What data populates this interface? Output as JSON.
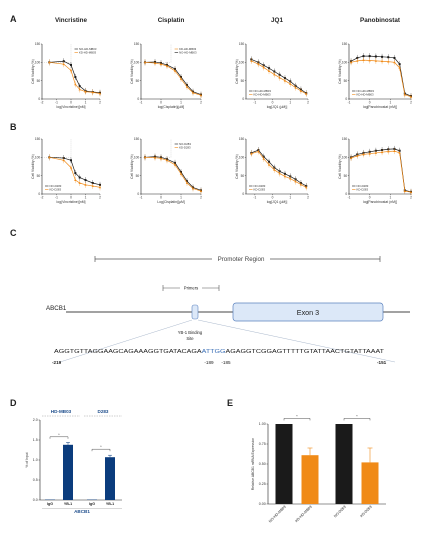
{
  "colors": {
    "black": "#1a1a1a",
    "orange": "#f08a17",
    "navy": "#0b3c7d",
    "grid_dashed": "#9e9e9e",
    "highlight_blue": "#3b6fb6",
    "exon_fill": "#dce8f8",
    "exon_stroke": "#5b82bf"
  },
  "panel_letters": {
    "A": "A",
    "B": "B",
    "C": "C",
    "D": "D",
    "E": "E"
  },
  "chart_data": [
    {
      "id": "A1",
      "panel": "A",
      "type": "line",
      "title": "Vincristine",
      "xlabel": "log(Vincristine)[nM]",
      "ylabel": "Cell Viability (%)",
      "xlim": [
        -2,
        2
      ],
      "ylim": [
        0,
        150
      ],
      "xticks": [
        "-2",
        "-1",
        "0",
        "1",
        "2"
      ],
      "yticks": [
        "0",
        "50",
        "100",
        "150"
      ],
      "legend": [
        "NO-HD-MB03",
        "KD-HD-MB03"
      ],
      "legend_position": "top-right",
      "ref_box": true,
      "series": [
        {
          "name": "NO-HD-MB03",
          "color": "black",
          "x": [
            -1.5,
            -0.5,
            0,
            0.3,
            0.6,
            1,
            1.5,
            2
          ],
          "y": [
            100,
            103,
            93,
            60,
            35,
            22,
            19,
            17
          ]
        },
        {
          "name": "KD-HD-MB03",
          "color": "orange",
          "x": [
            -1.5,
            -0.5,
            0,
            0.3,
            0.6,
            1,
            1.5,
            2
          ],
          "y": [
            100,
            95,
            78,
            40,
            26,
            20,
            18,
            15
          ]
        }
      ]
    },
    {
      "id": "A2",
      "panel": "A",
      "type": "line",
      "title": "Cisplatin",
      "xlabel": "log(Cisplatin)[µM]",
      "ylabel": "Cell Viability (%)",
      "xlim": [
        -1,
        2
      ],
      "ylim": [
        0,
        150
      ],
      "xticks": [
        "-1",
        "0",
        "1",
        "2"
      ],
      "yticks": [
        "0",
        "50",
        "100",
        "150"
      ],
      "legend": [
        "KD-HD-MB03",
        "NO-HD-MB03"
      ],
      "legend_position": "top-right",
      "ref_box": true,
      "series": [
        {
          "name": "NO-HD-MB03",
          "color": "black",
          "x": [
            -0.8,
            -0.3,
            0,
            0.3,
            0.7,
            1.0,
            1.3,
            1.6,
            2
          ],
          "y": [
            100,
            101,
            98,
            93,
            82,
            60,
            38,
            20,
            12
          ]
        },
        {
          "name": "KD-HD-MB03",
          "color": "orange",
          "x": [
            -0.8,
            -0.3,
            0,
            0.3,
            0.7,
            1.0,
            1.3,
            1.6,
            2
          ],
          "y": [
            100,
            98,
            95,
            90,
            77,
            55,
            33,
            17,
            10
          ]
        }
      ]
    },
    {
      "id": "A3",
      "panel": "A",
      "type": "line",
      "title": "JQ1",
      "xlabel": "log[JQ1 (µM)]",
      "ylabel": "Cell Viability (%)",
      "xlim": [
        -1.5,
        2
      ],
      "ylim": [
        0,
        150
      ],
      "xticks": [
        "-1",
        "0",
        "1",
        "2"
      ],
      "yticks": [
        "0",
        "50",
        "100",
        "150"
      ],
      "legend": [
        "NO-HD-MB03",
        "KD-HD-MB03"
      ],
      "legend_position": "bottom-left",
      "ref_box": false,
      "series": [
        {
          "name": "NO-HD-MB03",
          "color": "black",
          "x": [
            -1.2,
            -0.8,
            -0.5,
            -0.2,
            0.1,
            0.4,
            0.7,
            1.0,
            1.3,
            1.6,
            1.9
          ],
          "y": [
            108,
            100,
            92,
            84,
            75,
            66,
            57,
            48,
            36,
            26,
            16
          ]
        },
        {
          "name": "KD-HD-MB03",
          "color": "orange",
          "x": [
            -1.2,
            -0.8,
            -0.5,
            -0.2,
            0.1,
            0.4,
            0.7,
            1.0,
            1.3,
            1.6,
            1.9
          ],
          "y": [
            104,
            95,
            86,
            76,
            67,
            58,
            50,
            41,
            31,
            22,
            14
          ]
        }
      ]
    },
    {
      "id": "A4",
      "panel": "A",
      "type": "line",
      "title": "Panobinostat",
      "xlabel": "log[Panobinostat (nM)]",
      "ylabel": "Cell Viability (%)",
      "xlim": [
        -1,
        2
      ],
      "ylim": [
        0,
        150
      ],
      "xticks": [
        "-1",
        "0",
        "1",
        "2"
      ],
      "yticks": [
        "0",
        "50",
        "100",
        "150"
      ],
      "legend": [
        "NO-HD-MB03",
        "KD-HD-MB03"
      ],
      "legend_position": "bottom-left",
      "ref_box": false,
      "series": [
        {
          "name": "NO-HD-MB03",
          "color": "black",
          "x": [
            -0.9,
            -0.6,
            -0.3,
            0,
            0.3,
            0.6,
            0.9,
            1.2,
            1.45,
            1.7,
            2
          ],
          "y": [
            103,
            112,
            117,
            117,
            116,
            115,
            114,
            112,
            95,
            15,
            8
          ]
        },
        {
          "name": "KD-HD-MB03",
          "color": "orange",
          "x": [
            -0.9,
            -0.6,
            -0.3,
            0,
            0.3,
            0.6,
            0.9,
            1.2,
            1.45,
            1.7,
            2
          ],
          "y": [
            100,
            104,
            106,
            105,
            104,
            103,
            102,
            100,
            85,
            12,
            6
          ]
        }
      ]
    },
    {
      "id": "B1",
      "panel": "B",
      "type": "line",
      "title": "",
      "xlabel": "log(Vincristine)[nM]",
      "ylabel": "Cell Viability (%)",
      "xlim": [
        -2,
        2
      ],
      "ylim": [
        0,
        150
      ],
      "xticks": [
        "-2",
        "-1",
        "0",
        "1",
        "2"
      ],
      "yticks": [
        "0",
        "50",
        "100",
        "150"
      ],
      "legend": [
        "NO-D283",
        "KD-D283"
      ],
      "legend_position": "bottom-left",
      "ref_box": true,
      "series": [
        {
          "name": "NO-D283",
          "color": "black",
          "x": [
            -1.5,
            -0.5,
            0,
            0.3,
            0.6,
            1,
            1.5,
            2
          ],
          "y": [
            100,
            98,
            92,
            57,
            45,
            38,
            30,
            25
          ]
        },
        {
          "name": "KD-D283",
          "color": "orange",
          "x": [
            -1.5,
            -0.5,
            0,
            0.3,
            0.6,
            1,
            1.5,
            2
          ],
          "y": [
            100,
            92,
            72,
            38,
            30,
            25,
            22,
            18
          ]
        }
      ]
    },
    {
      "id": "B2",
      "panel": "B",
      "type": "line",
      "title": "",
      "xlabel": "Log(Cisplatin)[µM]",
      "ylabel": "Cell Viability (%)",
      "xlim": [
        -1,
        2
      ],
      "ylim": [
        0,
        150
      ],
      "xticks": [
        "-1",
        "0",
        "1",
        "2"
      ],
      "yticks": [
        "0",
        "50",
        "100",
        "150"
      ],
      "legend": [
        "NO-D283",
        "KD-D283"
      ],
      "legend_position": "top-right",
      "ref_box": true,
      "series": [
        {
          "name": "NO-D283",
          "color": "black",
          "x": [
            -0.8,
            -0.3,
            0,
            0.3,
            0.7,
            1.0,
            1.3,
            1.6,
            2
          ],
          "y": [
            100,
            102,
            100,
            95,
            85,
            60,
            35,
            18,
            10
          ]
        },
        {
          "name": "KD-D283",
          "color": "orange",
          "x": [
            -0.8,
            -0.3,
            0,
            0.3,
            0.7,
            1.0,
            1.3,
            1.6,
            2
          ],
          "y": [
            100,
            99,
            97,
            92,
            80,
            55,
            30,
            15,
            8
          ]
        }
      ]
    },
    {
      "id": "B3",
      "panel": "B",
      "type": "line",
      "title": "",
      "xlabel": "log[JQ1 (µM)]",
      "ylabel": "Cell Viability (%)",
      "xlim": [
        -1.5,
        2
      ],
      "ylim": [
        0,
        150
      ],
      "xticks": [
        "-1",
        "0",
        "1",
        "2"
      ],
      "yticks": [
        "0",
        "50",
        "100",
        "150"
      ],
      "legend": [
        "NO-D283",
        "KD-D283"
      ],
      "legend_position": "bottom-left",
      "ref_box": false,
      "series": [
        {
          "name": "NO-D283",
          "color": "black",
          "x": [
            -1.2,
            -0.8,
            -0.5,
            -0.2,
            0.1,
            0.4,
            0.7,
            1.0,
            1.3,
            1.6,
            1.9
          ],
          "y": [
            112,
            120,
            102,
            88,
            72,
            62,
            55,
            48,
            40,
            30,
            22
          ]
        },
        {
          "name": "KD-D283",
          "color": "orange",
          "x": [
            -1.2,
            -0.8,
            -0.5,
            -0.2,
            0.1,
            0.4,
            0.7,
            1.0,
            1.3,
            1.6,
            1.9
          ],
          "y": [
            110,
            116,
            96,
            80,
            66,
            56,
            48,
            42,
            34,
            26,
            18
          ]
        }
      ]
    },
    {
      "id": "B4",
      "panel": "B",
      "type": "line",
      "title": "",
      "xlabel": "log[Panobinostat (nM)]",
      "ylabel": "Cell Viability (%)",
      "xlim": [
        -1,
        2
      ],
      "ylim": [
        0,
        150
      ],
      "xticks": [
        "-1",
        "0",
        "1",
        "2"
      ],
      "yticks": [
        "0",
        "50",
        "100",
        "150"
      ],
      "legend": [
        "NO-D283",
        "KD-D283"
      ],
      "legend_position": "bottom-left",
      "ref_box": false,
      "series": [
        {
          "name": "NO-D283",
          "color": "black",
          "x": [
            -0.9,
            -0.6,
            -0.3,
            0,
            0.3,
            0.6,
            0.9,
            1.2,
            1.45,
            1.7,
            2
          ],
          "y": [
            100,
            108,
            112,
            115,
            118,
            120,
            122,
            123,
            118,
            10,
            6
          ]
        },
        {
          "name": "KD-D283",
          "color": "orange",
          "x": [
            -0.9,
            -0.6,
            -0.3,
            0,
            0.3,
            0.6,
            0.9,
            1.2,
            1.45,
            1.7,
            2
          ],
          "y": [
            98,
            104,
            108,
            110,
            112,
            114,
            116,
            117,
            112,
            8,
            5
          ]
        }
      ]
    },
    {
      "id": "D",
      "panel": "D",
      "type": "bar",
      "title": "",
      "ylabel": "% of Input",
      "ylim": [
        0,
        2
      ],
      "yticks": [
        "0.0",
        "0.5",
        "1.0",
        "1.5",
        "2.0"
      ],
      "groups": [
        "HD-MB03",
        "D283"
      ],
      "categories": [
        "IgG",
        "YB-1",
        "IgG",
        "YB-1"
      ],
      "values": [
        0.01,
        1.38,
        0.01,
        1.07
      ],
      "errors": [
        0.0,
        0.06,
        0.0,
        0.05
      ],
      "xlabel": "ABCB1",
      "significance": [
        "*",
        "*"
      ]
    },
    {
      "id": "E",
      "panel": "E",
      "type": "bar",
      "title": "",
      "ylabel": "Relative ABCB1 mRNA Expression",
      "ylim": [
        0,
        1
      ],
      "yticks": [
        "0.00",
        "0.25",
        "0.50",
        "0.75",
        "1.00"
      ],
      "categories": [
        "NO-HD-MB03",
        "KD-HD-MB03",
        "NO-D283",
        "KD-D283"
      ],
      "values": [
        1.0,
        0.61,
        1.0,
        0.52
      ],
      "errors": [
        0.0,
        0.09,
        0.0,
        0.18
      ],
      "bar_colors": [
        "black",
        "orange",
        "black",
        "orange"
      ],
      "significance": [
        "*",
        "*"
      ]
    }
  ],
  "diagram": {
    "promoter_label": "Promoter Region",
    "primers_label": "Primers",
    "gene_label": "ABCB1",
    "exon_label": "Exon 3",
    "binding_label_line1": "YB-1 Binding",
    "binding_label_line2": "Site",
    "seq_before": "AGGTGTTAGGAAGCAGAAAGGTGATACAGA",
    "seq_highlight": "ATTGG",
    "seq_after": "AGAGGTCGGAGTTTTTGTATTAACTGTATTAAAT",
    "pos_start": "-219",
    "pos_189": "-189",
    "pos_185": "-185",
    "pos_end": "-151"
  }
}
